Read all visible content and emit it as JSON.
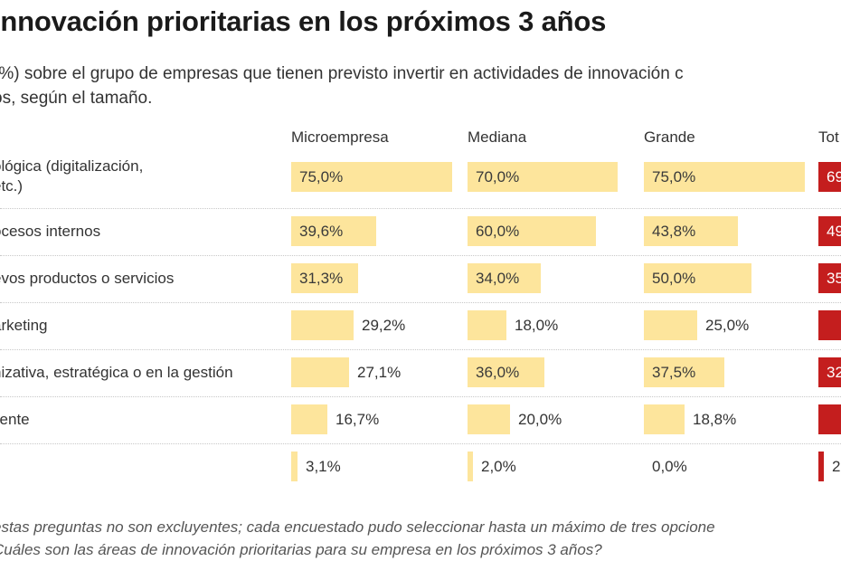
{
  "title": "innovación prioritarias en los próximos 3 años",
  "subtitle_lines": [
    "(%) sobre el grupo de empresas que tienen previsto invertir en actividades de innovación c",
    "os, según el tamaño."
  ],
  "colors": {
    "size_bar": "#fde59c",
    "total_bar": "#c41e1e",
    "separator": "#c8c8c8"
  },
  "chart_data": {
    "type": "table",
    "title": "innovación prioritarias en los próximos 3 años",
    "columns": [
      "Microempresa",
      "Mediana",
      "Grande",
      "Tot"
    ],
    "value_max": 100,
    "unit": "%",
    "rows": [
      {
        "label_lines": [
          "ológica (digitalización,",
          "etc.)"
        ],
        "values": [
          75.0,
          70.0,
          75.0,
          null
        ],
        "labels": [
          "75,0%",
          "70,0%",
          "75,0%",
          "69"
        ],
        "total_fraction_visible": 69
      },
      {
        "label_lines": [
          "ocesos internos"
        ],
        "values": [
          39.6,
          60.0,
          43.8,
          null
        ],
        "labels": [
          "39,6%",
          "60,0%",
          "43,8%",
          "49"
        ],
        "total_fraction_visible": 49
      },
      {
        "label_lines": [
          "evos productos o servicios"
        ],
        "values": [
          31.3,
          34.0,
          50.0,
          null
        ],
        "labels": [
          "31,3%",
          "34,0%",
          "50,0%",
          "35"
        ],
        "total_fraction_visible": 35
      },
      {
        "label_lines": [
          "arketing"
        ],
        "values": [
          29.2,
          18.0,
          25.0,
          null
        ],
        "labels": [
          "29,2%",
          "18,0%",
          "25,0%",
          ""
        ],
        "total_fraction_visible": 25
      },
      {
        "label_lines": [
          "nizativa, estratégica o en la gestión"
        ],
        "values": [
          27.1,
          36.0,
          37.5,
          null
        ],
        "labels": [
          "27,1%",
          "36,0%",
          "37,5%",
          "32"
        ],
        "total_fraction_visible": 32
      },
      {
        "label_lines": [
          "liente"
        ],
        "values": [
          16.7,
          20.0,
          18.8,
          null
        ],
        "labels": [
          "16,7%",
          "20,0%",
          "18,8%",
          ""
        ],
        "total_fraction_visible": 18
      },
      {
        "label_lines": [
          ""
        ],
        "values": [
          3.1,
          2.0,
          0.0,
          null
        ],
        "labels": [
          "3,1%",
          "2,0%",
          "0,0%",
          "2"
        ],
        "total_fraction_visible": 2
      }
    ]
  },
  "notes": [
    "estas preguntas no son excluyentes; cada encuestado pudo seleccionar hasta un máximo de tres opcione",
    "Cuáles son las áreas de innovación prioritarias para su empresa en los próximos 3 años?"
  ]
}
